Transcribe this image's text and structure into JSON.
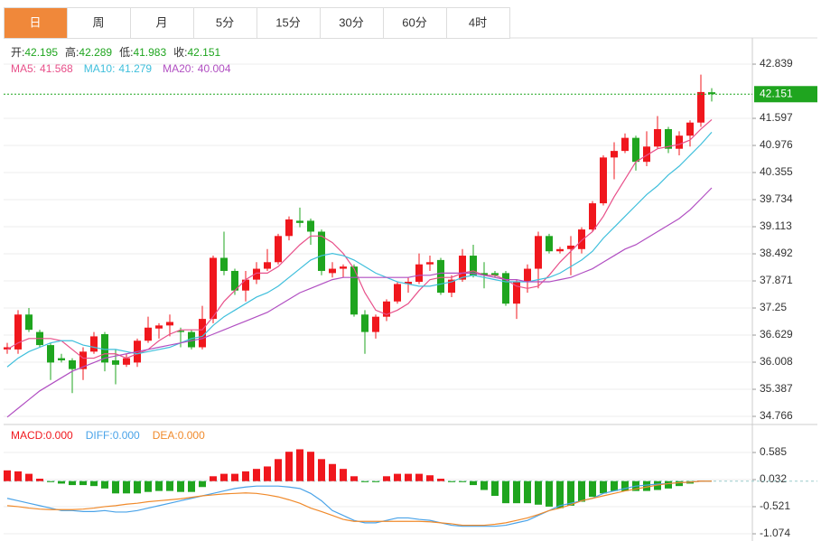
{
  "tabs": [
    "日",
    "周",
    "月",
    "5分",
    "15分",
    "30分",
    "60分",
    "4时"
  ],
  "active_tab": 0,
  "chart_data": [
    {
      "type": "candlestick",
      "summary": [
        {
          "label": "开:",
          "value": 42.195
        },
        {
          "label": "高:",
          "value": 42.289
        },
        {
          "label": "低:",
          "value": 41.983
        },
        {
          "label": "收:",
          "value": 42.151
        }
      ],
      "summary_color": "#1fa51f",
      "up_color": "#f0171d",
      "down_color": "#1fa51f",
      "grid": true,
      "ylim": [
        34.58,
        43.44
      ],
      "yticks": [
        42.839,
        41.597,
        40.976,
        40.355,
        39.734,
        39.113,
        38.492,
        37.871,
        37.25,
        36.629,
        36.008,
        35.387,
        34.766
      ],
      "open": [
        36.3,
        36.3,
        37.1,
        36.7,
        36.4,
        36.1,
        36.05,
        35.85,
        36.25,
        36.65,
        36.05,
        35.95,
        36.0,
        36.5,
        36.78,
        36.85,
        36.73,
        36.7,
        36.35,
        37.0,
        38.4,
        38.1,
        37.65,
        37.9,
        38.15,
        38.3,
        38.9,
        39.25,
        39.25,
        39.0,
        38.05,
        38.15,
        38.2,
        37.1,
        36.7,
        37.05,
        37.4,
        37.8,
        37.85,
        38.25,
        38.35,
        37.6,
        37.9,
        38.45,
        38.05,
        38.05,
        38.05,
        37.35,
        37.85,
        38.15,
        38.9,
        38.55,
        38.6,
        38.6,
        39.05,
        39.65,
        40.7,
        40.85,
        41.15,
        40.6,
        40.95,
        41.35,
        40.9,
        41.2,
        41.5,
        42.195
      ],
      "high": [
        36.45,
        37.2,
        37.25,
        36.75,
        36.45,
        36.2,
        36.1,
        36.35,
        36.7,
        36.7,
        36.3,
        36.2,
        36.55,
        37.05,
        36.9,
        37.1,
        36.8,
        36.75,
        37.3,
        38.45,
        39.0,
        38.15,
        38.1,
        38.3,
        38.6,
        38.95,
        39.35,
        39.55,
        39.3,
        39.05,
        38.3,
        38.25,
        38.25,
        37.2,
        37.1,
        37.45,
        37.85,
        37.95,
        38.5,
        38.45,
        38.4,
        38.0,
        38.6,
        38.7,
        38.3,
        38.1,
        38.1,
        37.9,
        38.25,
        39.0,
        38.95,
        38.65,
        38.9,
        39.1,
        39.7,
        40.75,
        41.05,
        41.25,
        41.2,
        41.3,
        41.65,
        41.4,
        41.3,
        41.55,
        42.6,
        42.289
      ],
      "low": [
        36.2,
        36.2,
        36.7,
        36.35,
        35.6,
        36.0,
        35.3,
        35.6,
        36.2,
        35.8,
        35.5,
        35.9,
        35.9,
        36.45,
        36.55,
        36.6,
        36.35,
        36.3,
        36.3,
        36.9,
        38.0,
        37.55,
        37.4,
        37.8,
        38.1,
        38.25,
        38.8,
        39.1,
        38.7,
        38.0,
        37.95,
        37.95,
        37.05,
        36.2,
        36.55,
        36.95,
        37.35,
        37.6,
        37.8,
        38.1,
        37.55,
        37.5,
        37.85,
        37.95,
        37.7,
        37.95,
        37.3,
        37.0,
        37.6,
        37.7,
        38.5,
        38.5,
        38.0,
        38.5,
        39.0,
        39.6,
        40.2,
        40.8,
        40.4,
        40.5,
        40.9,
        40.8,
        40.75,
        40.95,
        41.4,
        41.983
      ],
      "close": [
        36.35,
        37.1,
        36.75,
        36.4,
        36.0,
        36.05,
        35.85,
        36.25,
        36.6,
        36.0,
        35.95,
        36.1,
        36.5,
        36.8,
        36.85,
        36.93,
        36.7,
        36.35,
        37.0,
        38.4,
        38.1,
        37.65,
        37.9,
        38.15,
        38.3,
        38.9,
        39.28,
        39.2,
        39.0,
        38.1,
        38.15,
        38.2,
        37.1,
        36.7,
        37.05,
        37.4,
        37.8,
        37.85,
        38.25,
        38.3,
        37.6,
        37.9,
        38.45,
        38.0,
        38.0,
        38.0,
        37.35,
        37.85,
        38.15,
        38.9,
        38.55,
        38.6,
        38.68,
        39.05,
        39.65,
        40.7,
        40.85,
        41.15,
        40.6,
        40.95,
        41.35,
        40.9,
        41.2,
        41.5,
        42.2,
        42.151
      ],
      "series": [
        {
          "name": "MA5:",
          "color": "#e8508a",
          "values": [
            36.3,
            36.45,
            36.55,
            36.55,
            36.55,
            36.5,
            36.3,
            36.1,
            36.1,
            36.2,
            36.2,
            36.1,
            36.2,
            36.3,
            36.5,
            36.65,
            36.75,
            36.75,
            36.75,
            37.05,
            37.4,
            37.65,
            37.9,
            38.05,
            38.05,
            38.2,
            38.45,
            38.7,
            38.9,
            38.9,
            38.75,
            38.5,
            38.15,
            37.6,
            37.2,
            37.1,
            37.2,
            37.35,
            37.65,
            37.9,
            37.95,
            37.95,
            38.05,
            38.1,
            38.0,
            38.0,
            37.9,
            37.75,
            37.7,
            37.75,
            38.0,
            38.3,
            38.55,
            38.8,
            39.0,
            39.35,
            39.8,
            40.2,
            40.6,
            40.75,
            40.9,
            40.95,
            41.0,
            41.1,
            41.35,
            41.568
          ]
        },
        {
          "name": "MA10:",
          "color": "#3fbfdc",
          "values": [
            35.9,
            36.1,
            36.25,
            36.35,
            36.45,
            36.5,
            36.5,
            36.4,
            36.35,
            36.3,
            36.3,
            36.25,
            36.2,
            36.25,
            36.3,
            36.35,
            36.45,
            36.55,
            36.6,
            36.85,
            37.05,
            37.2,
            37.35,
            37.5,
            37.6,
            37.75,
            37.95,
            38.15,
            38.35,
            38.45,
            38.5,
            38.45,
            38.35,
            38.2,
            38.05,
            37.95,
            37.85,
            37.8,
            37.75,
            37.75,
            37.8,
            37.85,
            37.95,
            38.0,
            37.95,
            37.9,
            37.85,
            37.85,
            37.85,
            37.9,
            37.95,
            38.05,
            38.2,
            38.35,
            38.55,
            38.85,
            39.1,
            39.35,
            39.6,
            39.85,
            40.05,
            40.3,
            40.5,
            40.75,
            41.0,
            41.279
          ]
        },
        {
          "name": "MA20:",
          "color": "#b14fc2",
          "values": [
            34.75,
            34.95,
            35.15,
            35.35,
            35.5,
            35.65,
            35.8,
            35.9,
            36.0,
            36.1,
            36.15,
            36.2,
            36.25,
            36.3,
            36.35,
            36.4,
            36.45,
            36.5,
            36.55,
            36.65,
            36.75,
            36.85,
            36.95,
            37.05,
            37.15,
            37.3,
            37.45,
            37.6,
            37.7,
            37.8,
            37.9,
            37.95,
            37.95,
            37.95,
            37.95,
            37.95,
            37.95,
            37.95,
            38.0,
            38.0,
            38.05,
            38.05,
            38.05,
            38.05,
            38.0,
            37.95,
            37.9,
            37.9,
            37.85,
            37.85,
            37.85,
            37.9,
            37.95,
            38.05,
            38.15,
            38.3,
            38.45,
            38.6,
            38.7,
            38.85,
            39.0,
            39.15,
            39.3,
            39.5,
            39.75,
            40.004
          ]
        }
      ]
    },
    {
      "type": "macd",
      "grid": true,
      "ylim": [
        -1.221,
        1.064
      ],
      "yticks": [
        0.585,
        0.032,
        -0.521,
        -1.074
      ],
      "up_color": "#f0171d",
      "down_color": "#1fa51f",
      "series": [
        {
          "name": "MACD:",
          "legend_value": "0.000",
          "color": "#f0171d",
          "kind": "histogram",
          "values": [
            0.22,
            0.2,
            0.15,
            0.05,
            -0.02,
            -0.05,
            -0.08,
            -0.08,
            -0.1,
            -0.15,
            -0.25,
            -0.25,
            -0.25,
            -0.22,
            -0.2,
            -0.2,
            -0.22,
            -0.22,
            -0.12,
            0.1,
            0.15,
            0.15,
            0.2,
            0.25,
            0.3,
            0.45,
            0.6,
            0.65,
            0.6,
            0.45,
            0.35,
            0.25,
            0.1,
            -0.02,
            -0.02,
            0.1,
            0.15,
            0.15,
            0.15,
            0.12,
            0.05,
            -0.02,
            -0.02,
            -0.08,
            -0.18,
            -0.3,
            -0.45,
            -0.45,
            -0.45,
            -0.48,
            -0.52,
            -0.55,
            -0.5,
            -0.42,
            -0.32,
            -0.25,
            -0.2,
            -0.2,
            -0.2,
            -0.2,
            -0.18,
            -0.15,
            -0.1,
            -0.05,
            0.01,
            0.0
          ]
        },
        {
          "name": "DIFF:",
          "legend_value": "0.000",
          "color": "#4aa3e8",
          "kind": "line",
          "values": [
            -0.35,
            -0.4,
            -0.45,
            -0.5,
            -0.55,
            -0.6,
            -0.6,
            -0.62,
            -0.62,
            -0.6,
            -0.63,
            -0.63,
            -0.6,
            -0.55,
            -0.5,
            -0.45,
            -0.4,
            -0.35,
            -0.3,
            -0.25,
            -0.2,
            -0.15,
            -0.12,
            -0.1,
            -0.1,
            -0.1,
            -0.12,
            -0.15,
            -0.25,
            -0.4,
            -0.6,
            -0.7,
            -0.8,
            -0.85,
            -0.85,
            -0.8,
            -0.75,
            -0.75,
            -0.78,
            -0.8,
            -0.85,
            -0.9,
            -0.92,
            -0.92,
            -0.92,
            -0.92,
            -0.9,
            -0.85,
            -0.8,
            -0.7,
            -0.6,
            -0.5,
            -0.45,
            -0.4,
            -0.35,
            -0.25,
            -0.2,
            -0.15,
            -0.1,
            -0.08,
            -0.06,
            -0.05,
            -0.03,
            -0.02,
            0.0,
            0.0
          ]
        },
        {
          "name": "DEA:",
          "legend_value": "0.000",
          "color": "#f08a2b",
          "kind": "line",
          "values": [
            -0.5,
            -0.52,
            -0.55,
            -0.57,
            -0.58,
            -0.58,
            -0.58,
            -0.57,
            -0.55,
            -0.52,
            -0.5,
            -0.47,
            -0.45,
            -0.42,
            -0.4,
            -0.38,
            -0.36,
            -0.33,
            -0.3,
            -0.28,
            -0.26,
            -0.25,
            -0.24,
            -0.25,
            -0.28,
            -0.32,
            -0.38,
            -0.45,
            -0.55,
            -0.62,
            -0.7,
            -0.78,
            -0.82,
            -0.82,
            -0.82,
            -0.82,
            -0.82,
            -0.82,
            -0.82,
            -0.83,
            -0.85,
            -0.87,
            -0.9,
            -0.9,
            -0.9,
            -0.88,
            -0.85,
            -0.8,
            -0.75,
            -0.68,
            -0.6,
            -0.55,
            -0.48,
            -0.4,
            -0.35,
            -0.3,
            -0.25,
            -0.2,
            -0.16,
            -0.12,
            -0.08,
            -0.05,
            -0.03,
            -0.02,
            0.0,
            0.0
          ]
        }
      ]
    }
  ]
}
